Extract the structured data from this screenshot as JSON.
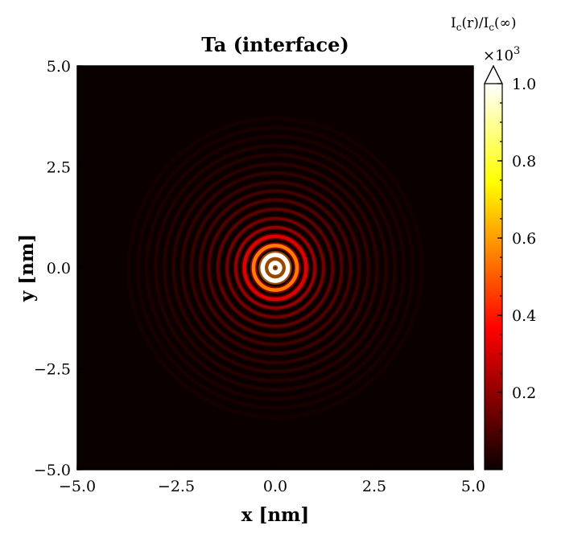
{
  "chart_data": {
    "type": "heatmap",
    "title": "Ta (interface)",
    "xlabel": "x [nm]",
    "ylabel": "y [nm]",
    "xlim": [
      -5.0,
      5.0
    ],
    "ylim": [
      -5.0,
      5.0
    ],
    "xticks": [
      "−5.0",
      "−2.5",
      "0.0",
      "2.5",
      "5.0"
    ],
    "yticks": [
      "−5.0",
      "−2.5",
      "0.0",
      "2.5",
      "5.0"
    ],
    "colorbar": {
      "label": "I_c(r)/I_c(∞)",
      "label_parts": {
        "a": "I",
        "sub1": "c",
        "mid": "(r)/I",
        "sub2": "c",
        "end": "(∞)"
      },
      "scale_label": "×10",
      "scale_exp": "3",
      "range": [
        0,
        1.0
      ],
      "ticks": [
        0.2,
        0.4,
        0.6,
        0.8,
        1.0
      ],
      "tick_labels": [
        "0.2",
        "0.4",
        "0.6",
        "0.8",
        "1.0"
      ],
      "colormap": "hot",
      "extend": "max"
    },
    "rings": [
      {
        "r": 0.12,
        "v": 1.0
      },
      {
        "r": 0.32,
        "v": 1.0
      },
      {
        "r": 0.55,
        "v": 0.55
      },
      {
        "r": 0.78,
        "v": 0.3
      },
      {
        "r": 1.0,
        "v": 0.2
      },
      {
        "r": 1.22,
        "v": 0.15
      },
      {
        "r": 1.45,
        "v": 0.12
      },
      {
        "r": 1.68,
        "v": 0.1
      },
      {
        "r": 1.9,
        "v": 0.08
      },
      {
        "r": 2.12,
        "v": 0.065
      },
      {
        "r": 2.35,
        "v": 0.055
      },
      {
        "r": 2.57,
        "v": 0.045
      },
      {
        "r": 2.8,
        "v": 0.038
      },
      {
        "r": 3.02,
        "v": 0.032
      },
      {
        "r": 3.25,
        "v": 0.025
      },
      {
        "r": 3.47,
        "v": 0.02
      },
      {
        "r": 3.7,
        "v": 0.015
      }
    ],
    "background_value": 0.0
  }
}
